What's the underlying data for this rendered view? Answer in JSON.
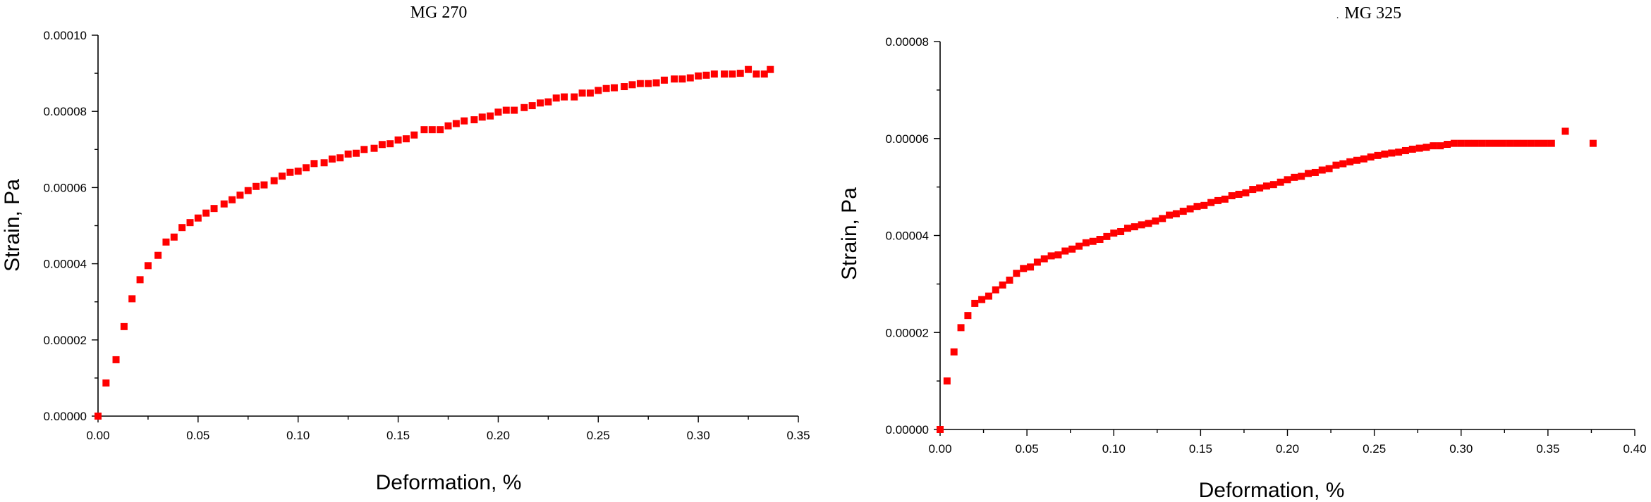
{
  "chart_data": [
    {
      "type": "scatter",
      "title": "MG 270",
      "xlabel": "Deformation, %",
      "ylabel": "Strain, Pa",
      "xlim": [
        0,
        0.35
      ],
      "ylim": [
        0,
        0.0001
      ],
      "x_ticks": [
        "0.00",
        "0.05",
        "0.10",
        "0.15",
        "0.20",
        "0.25",
        "0.30",
        "0.35"
      ],
      "y_ticks": [
        "0.00000",
        "0.00002",
        "0.00004",
        "0.00006",
        "0.00008",
        "0.00010"
      ],
      "grid": false,
      "marker_color": "#ff0000",
      "series": [
        {
          "x": [
            0.0,
            0.004,
            0.009,
            0.013,
            0.017,
            0.021,
            0.025,
            0.03,
            0.034,
            0.038,
            0.042,
            0.046,
            0.05,
            0.054,
            0.058,
            0.063,
            0.067,
            0.071,
            0.075,
            0.079,
            0.083,
            0.088,
            0.092,
            0.096,
            0.1,
            0.104,
            0.108,
            0.113,
            0.117,
            0.121,
            0.125,
            0.129,
            0.133,
            0.138,
            0.142,
            0.146,
            0.15,
            0.154,
            0.158,
            0.163,
            0.167,
            0.171,
            0.175,
            0.179,
            0.183,
            0.188,
            0.192,
            0.196,
            0.2,
            0.204,
            0.208,
            0.213,
            0.217,
            0.221,
            0.225,
            0.229,
            0.233,
            0.238,
            0.242,
            0.246,
            0.25,
            0.254,
            0.258,
            0.263,
            0.267,
            0.271,
            0.275,
            0.279,
            0.283,
            0.288,
            0.292,
            0.296,
            0.3,
            0.304,
            0.308,
            0.313,
            0.317,
            0.321,
            0.325,
            0.329,
            0.333,
            0.336
          ],
          "y": [
            0.0,
            8.7e-06,
            1.48e-05,
            2.35e-05,
            3.08e-05,
            3.58e-05,
            3.95e-05,
            4.22e-05,
            4.57e-05,
            4.7e-05,
            4.95e-05,
            5.08e-05,
            5.2e-05,
            5.33e-05,
            5.45e-05,
            5.57e-05,
            5.68e-05,
            5.8e-05,
            5.92e-05,
            6.03e-05,
            6.07e-05,
            6.18e-05,
            6.3e-05,
            6.4e-05,
            6.43e-05,
            6.52e-05,
            6.63e-05,
            6.65e-05,
            6.75e-05,
            6.78e-05,
            6.88e-05,
            6.9e-05,
            7e-05,
            7.03e-05,
            7.13e-05,
            7.15e-05,
            7.25e-05,
            7.28e-05,
            7.38e-05,
            7.52e-05,
            7.52e-05,
            7.52e-05,
            7.62e-05,
            7.68e-05,
            7.75e-05,
            7.78e-05,
            7.85e-05,
            7.88e-05,
            7.98e-05,
            8.03e-05,
            8.03e-05,
            8.1e-05,
            8.15e-05,
            8.22e-05,
            8.25e-05,
            8.35e-05,
            8.38e-05,
            8.38e-05,
            8.48e-05,
            8.48e-05,
            8.55e-05,
            8.6e-05,
            8.62e-05,
            8.65e-05,
            8.7e-05,
            8.73e-05,
            8.73e-05,
            8.75e-05,
            8.82e-05,
            8.85e-05,
            8.85e-05,
            8.88e-05,
            8.93e-05,
            8.95e-05,
            8.98e-05,
            8.98e-05,
            8.98e-05,
            9e-05,
            9.1e-05,
            8.98e-05,
            8.98e-05,
            9.1e-05
          ]
        }
      ]
    },
    {
      "type": "scatter",
      "title": "MG 325",
      "title_prefix": ".",
      "xlabel": "Deformation, %",
      "ylabel": "Strain, Pa",
      "xlim": [
        0,
        0.4
      ],
      "ylim": [
        0,
        8e-05
      ],
      "x_ticks": [
        "0.00",
        "0.05",
        "0.10",
        "0.15",
        "0.20",
        "0.25",
        "0.30",
        "0.35",
        "0.40"
      ],
      "y_ticks": [
        "0.00000",
        "0.00002",
        "0.00004",
        "0.00006",
        "0.00008"
      ],
      "grid": false,
      "marker_color": "#ff0000",
      "series": [
        {
          "x": [
            0.0,
            0.004,
            0.008,
            0.012,
            0.016,
            0.02,
            0.024,
            0.028,
            0.032,
            0.036,
            0.04,
            0.044,
            0.048,
            0.052,
            0.056,
            0.06,
            0.064,
            0.068,
            0.072,
            0.076,
            0.08,
            0.084,
            0.088,
            0.092,
            0.096,
            0.1,
            0.104,
            0.108,
            0.112,
            0.116,
            0.12,
            0.124,
            0.128,
            0.132,
            0.136,
            0.14,
            0.144,
            0.148,
            0.152,
            0.156,
            0.16,
            0.164,
            0.168,
            0.172,
            0.176,
            0.18,
            0.184,
            0.188,
            0.192,
            0.196,
            0.2,
            0.204,
            0.208,
            0.212,
            0.216,
            0.22,
            0.224,
            0.228,
            0.232,
            0.236,
            0.24,
            0.244,
            0.248,
            0.252,
            0.256,
            0.26,
            0.264,
            0.268,
            0.272,
            0.276,
            0.28,
            0.284,
            0.288,
            0.292,
            0.296,
            0.3,
            0.304,
            0.308,
            0.312,
            0.316,
            0.32,
            0.324,
            0.328,
            0.332,
            0.336,
            0.34,
            0.344,
            0.348,
            0.352,
            0.36,
            0.376
          ],
          "y": [
            0.0,
            1e-05,
            1.6e-05,
            2.1e-05,
            2.35e-05,
            2.6e-05,
            2.68e-05,
            2.75e-05,
            2.88e-05,
            2.98e-05,
            3.08e-05,
            3.22e-05,
            3.32e-05,
            3.35e-05,
            3.45e-05,
            3.52e-05,
            3.58e-05,
            3.6e-05,
            3.68e-05,
            3.72e-05,
            3.78e-05,
            3.85e-05,
            3.88e-05,
            3.92e-05,
            3.98e-05,
            4.05e-05,
            4.08e-05,
            4.15e-05,
            4.18e-05,
            4.22e-05,
            4.25e-05,
            4.3e-05,
            4.35e-05,
            4.42e-05,
            4.45e-05,
            4.5e-05,
            4.55e-05,
            4.6e-05,
            4.62e-05,
            4.68e-05,
            4.72e-05,
            4.75e-05,
            4.82e-05,
            4.85e-05,
            4.88e-05,
            4.95e-05,
            4.98e-05,
            5.02e-05,
            5.05e-05,
            5.1e-05,
            5.15e-05,
            5.2e-05,
            5.22e-05,
            5.28e-05,
            5.3e-05,
            5.35e-05,
            5.38e-05,
            5.45e-05,
            5.48e-05,
            5.52e-05,
            5.55e-05,
            5.58e-05,
            5.62e-05,
            5.65e-05,
            5.68e-05,
            5.7e-05,
            5.72e-05,
            5.75e-05,
            5.78e-05,
            5.8e-05,
            5.82e-05,
            5.85e-05,
            5.85e-05,
            5.88e-05,
            5.9e-05,
            5.9e-05,
            5.9e-05,
            5.9e-05,
            5.9e-05,
            5.9e-05,
            5.9e-05,
            5.9e-05,
            5.9e-05,
            5.9e-05,
            5.9e-05,
            5.9e-05,
            5.9e-05,
            5.9e-05,
            5.9e-05,
            6.15e-05,
            5.9e-05
          ]
        }
      ]
    }
  ]
}
